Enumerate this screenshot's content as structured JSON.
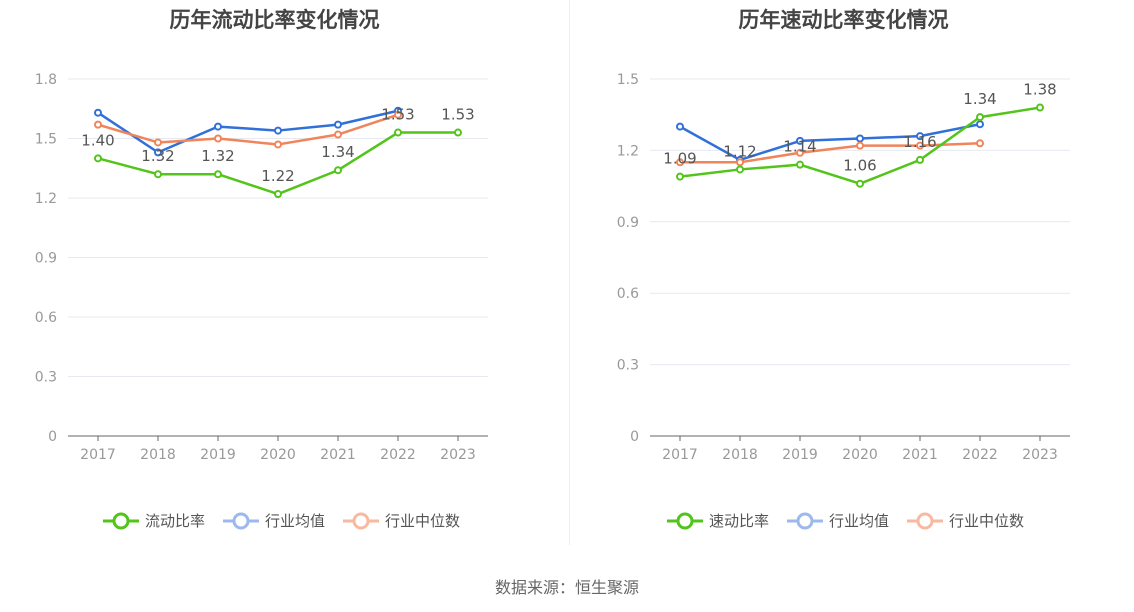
{
  "source_text": "数据来源：恒生聚源",
  "chart_data": [
    {
      "type": "line",
      "title": "历年流动比率变化情况",
      "categories": [
        "2017",
        "2018",
        "2019",
        "2020",
        "2021",
        "2022",
        "2023"
      ],
      "ylim": [
        0,
        1.8
      ],
      "yticks": [
        "0",
        "0.3",
        "0.6",
        "0.9",
        "1.2",
        "1.5",
        "1.8"
      ],
      "grid": true,
      "legend_position": "bottom",
      "series": [
        {
          "name": "流动比率",
          "color": "#52c41a",
          "values": [
            1.4,
            1.32,
            1.32,
            1.22,
            1.34,
            1.53,
            1.53
          ],
          "labels": [
            "1.40",
            "1.32",
            "1.32",
            "1.22",
            "1.34",
            "1.53",
            "1.53"
          ]
        },
        {
          "name": "行业均值",
          "color": "#3070d8",
          "values": [
            1.63,
            1.43,
            1.56,
            1.54,
            1.57,
            1.64,
            null
          ]
        },
        {
          "name": "行业中位数",
          "color": "#f0845a",
          "values": [
            1.57,
            1.48,
            1.5,
            1.47,
            1.52,
            1.62,
            null
          ]
        }
      ]
    },
    {
      "type": "line",
      "title": "历年速动比率变化情况",
      "categories": [
        "2017",
        "2018",
        "2019",
        "2020",
        "2021",
        "2022",
        "2023"
      ],
      "ylim": [
        0,
        1.5
      ],
      "yticks": [
        "0",
        "0.3",
        "0.6",
        "0.9",
        "1.2",
        "1.5"
      ],
      "grid": true,
      "legend_position": "bottom",
      "series": [
        {
          "name": "速动比率",
          "color": "#52c41a",
          "values": [
            1.09,
            1.12,
            1.14,
            1.06,
            1.16,
            1.34,
            1.38
          ],
          "labels": [
            "1.09",
            "1.12",
            "1.14",
            "1.06",
            "1.16",
            "1.34",
            "1.38"
          ]
        },
        {
          "name": "行业均值",
          "color": "#3070d8",
          "values": [
            1.3,
            1.16,
            1.24,
            1.25,
            1.26,
            1.31,
            null
          ]
        },
        {
          "name": "行业中位数",
          "color": "#f0845a",
          "values": [
            1.15,
            1.15,
            1.19,
            1.22,
            1.22,
            1.23,
            null
          ]
        }
      ]
    }
  ]
}
